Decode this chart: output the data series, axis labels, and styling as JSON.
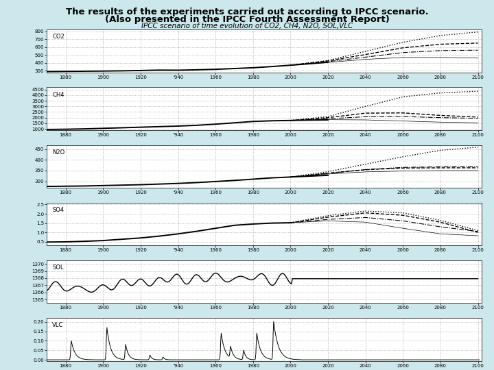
{
  "title_line1": "The results of the experiments carried out according to IPCC scenario.",
  "title_line2": "(Also presented in the IPCC Fourth Assessment Report)",
  "subtitle": "IPCC scenario of time evolution of CO2, CH4, N2O, SOL,VLC",
  "bg_color": "#cce8ec",
  "plot_bg_color": "#ffffff",
  "x_ticks": [
    1880,
    1900,
    1920,
    1940,
    1960,
    1980,
    2000,
    2020,
    2040,
    2060,
    2080,
    2100
  ],
  "CO2": {
    "ylim": [
      280,
      820
    ],
    "yticks": [
      300,
      400,
      500,
      600,
      700,
      800
    ],
    "ylabel": "CO2",
    "historical_x": [
      1870,
      1880,
      1890,
      1900,
      1910,
      1920,
      1930,
      1940,
      1950,
      1960,
      1970,
      1980,
      1990,
      2000,
      2010,
      2020
    ],
    "historical_y": [
      290,
      292,
      294,
      296,
      299,
      303,
      308,
      307,
      312,
      318,
      328,
      338,
      353,
      370,
      388,
      408
    ],
    "scenarios": {
      "A2": {
        "x": [
          2000,
          2020,
          2040,
          2060,
          2080,
          2100
        ],
        "y": [
          370,
          430,
          545,
          660,
          745,
          790
        ],
        "style": ":",
        "lw": 1.0
      },
      "A1B": {
        "x": [
          2000,
          2020,
          2040,
          2060,
          2080,
          2100
        ],
        "y": [
          370,
          425,
          505,
          590,
          635,
          650
        ],
        "style": "--",
        "lw": 1.0
      },
      "B2": {
        "x": [
          2000,
          2020,
          2040,
          2060,
          2080,
          2100
        ],
        "y": [
          370,
          415,
          472,
          530,
          555,
          560
        ],
        "style": "-.",
        "lw": 0.8
      },
      "B1": {
        "x": [
          2000,
          2020,
          2040,
          2060,
          2080,
          2100
        ],
        "y": [
          370,
          405,
          444,
          468,
          468,
          460
        ],
        "style": "-",
        "lw": 0.5
      }
    }
  },
  "CH4": {
    "ylim": [
      900,
      4700
    ],
    "yticks": [
      1000,
      1500,
      2000,
      2500,
      3000,
      3500,
      4000,
      4500
    ],
    "ylabel": "CH4",
    "historical_x": [
      1870,
      1880,
      1890,
      1900,
      1910,
      1920,
      1930,
      1940,
      1950,
      1960,
      1970,
      1980,
      1990,
      2000,
      2010,
      2020
    ],
    "historical_y": [
      950,
      970,
      1000,
      1050,
      1100,
      1150,
      1200,
      1250,
      1320,
      1420,
      1540,
      1660,
      1720,
      1750,
      1780,
      1800
    ],
    "scenarios": {
      "A2": {
        "x": [
          2000,
          2020,
          2040,
          2060,
          2080,
          2100
        ],
        "y": [
          1750,
          2100,
          3000,
          3850,
          4200,
          4350
        ],
        "style": ":",
        "lw": 1.0
      },
      "A1B": {
        "x": [
          2000,
          2020,
          2040,
          2060,
          2080,
          2100
        ],
        "y": [
          1750,
          2000,
          2400,
          2420,
          2200,
          2050
        ],
        "style": "--",
        "lw": 1.0
      },
      "B2": {
        "x": [
          2000,
          2020,
          2040,
          2060,
          2080,
          2100
        ],
        "y": [
          1750,
          1900,
          2080,
          2100,
          2000,
          1940
        ],
        "style": "-.",
        "lw": 0.8
      },
      "B1": {
        "x": [
          2000,
          2020,
          2040,
          2060,
          2080,
          2100
        ],
        "y": [
          1750,
          1820,
          1800,
          1700,
          1600,
          1540
        ],
        "style": "-",
        "lw": 0.5
      }
    }
  },
  "N2O": {
    "ylim": [
      270,
      470
    ],
    "yticks": [
      300,
      350,
      400,
      450
    ],
    "ylabel": "N2O",
    "historical_x": [
      1870,
      1880,
      1890,
      1900,
      1910,
      1920,
      1930,
      1940,
      1950,
      1960,
      1970,
      1980,
      1990,
      2000,
      2010,
      2020
    ],
    "historical_y": [
      276,
      277,
      278,
      280,
      282,
      284,
      287,
      290,
      294,
      299,
      304,
      310,
      316,
      320,
      324,
      328
    ],
    "scenarios": {
      "A2": {
        "x": [
          2000,
          2020,
          2040,
          2060,
          2080,
          2100
        ],
        "y": [
          320,
          345,
          380,
          415,
          445,
          460
        ],
        "style": ":",
        "lw": 1.0
      },
      "A1B": {
        "x": [
          2000,
          2020,
          2040,
          2060,
          2080,
          2100
        ],
        "y": [
          320,
          338,
          354,
          362,
          363,
          363
        ],
        "style": "--",
        "lw": 1.0
      },
      "B2": {
        "x": [
          2000,
          2020,
          2040,
          2060,
          2080,
          2100
        ],
        "y": [
          320,
          337,
          355,
          365,
          368,
          368
        ],
        "style": "-.",
        "lw": 0.8
      },
      "B1": {
        "x": [
          2000,
          2020,
          2040,
          2060,
          2080,
          2100
        ],
        "y": [
          320,
          334,
          344,
          348,
          350,
          350
        ],
        "style": "-",
        "lw": 0.5
      }
    }
  },
  "SO4": {
    "ylim": [
      0.3,
      2.6
    ],
    "yticks": [
      0.5,
      1.0,
      1.5,
      2.0,
      2.5
    ],
    "ylabel": "SO4",
    "historical_x": [
      1870,
      1880,
      1890,
      1900,
      1910,
      1920,
      1930,
      1940,
      1950,
      1960,
      1970,
      1980,
      1990,
      2000
    ],
    "historical_y": [
      0.48,
      0.49,
      0.52,
      0.56,
      0.63,
      0.7,
      0.8,
      0.92,
      1.06,
      1.22,
      1.38,
      1.45,
      1.5,
      1.52
    ],
    "scenarios": {
      "A2": {
        "x": [
          2000,
          2020,
          2040,
          2060,
          2080,
          2100
        ],
        "y": [
          1.52,
          1.9,
          2.15,
          2.05,
          1.65,
          1.1
        ],
        "style": ":",
        "lw": 1.0
      },
      "A1B": {
        "x": [
          2000,
          2020,
          2040,
          2060,
          2080,
          2100
        ],
        "y": [
          1.52,
          1.82,
          2.05,
          1.92,
          1.55,
          1.0
        ],
        "style": "--",
        "lw": 1.0
      },
      "B2": {
        "x": [
          2000,
          2020,
          2040,
          2060,
          2080,
          2100
        ],
        "y": [
          1.52,
          1.7,
          1.8,
          1.62,
          1.3,
          1.05
        ],
        "style": "-.",
        "lw": 0.8
      },
      "B1": {
        "x": [
          2000,
          2020,
          2040,
          2060,
          2080,
          2100
        ],
        "y": [
          1.52,
          1.62,
          1.55,
          1.22,
          0.92,
          0.82
        ],
        "style": "-",
        "lw": 0.5
      }
    }
  },
  "SOL": {
    "ylim": [
      1364.5,
      1370.5
    ],
    "yticks": [
      1365,
      1366,
      1367,
      1368,
      1369,
      1370
    ],
    "ylabel": "SOL"
  },
  "VLC": {
    "ylim": [
      -0.005,
      0.22
    ],
    "yticks": [
      0.0,
      0.05,
      0.1,
      0.15,
      0.2
    ],
    "ylabel": "VLC"
  }
}
